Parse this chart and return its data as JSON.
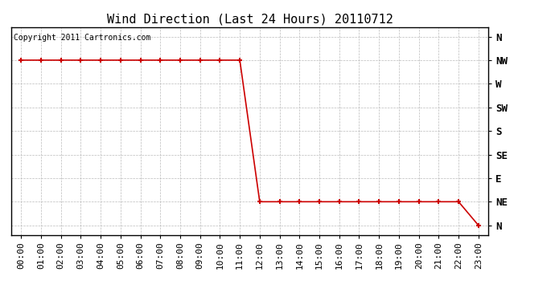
{
  "title": "Wind Direction (Last 24 Hours) 20110712",
  "copyright_text": "Copyright 2011 Cartronics.com",
  "background_color": "#ffffff",
  "plot_bg_color": "#ffffff",
  "grid_color": "#bbbbbb",
  "line_color": "#cc0000",
  "marker_color": "#cc0000",
  "x_labels": [
    "00:00",
    "01:00",
    "02:00",
    "03:00",
    "04:00",
    "05:00",
    "06:00",
    "07:00",
    "08:00",
    "09:00",
    "10:00",
    "11:00",
    "12:00",
    "13:00",
    "14:00",
    "15:00",
    "16:00",
    "17:00",
    "18:00",
    "19:00",
    "20:00",
    "21:00",
    "22:00",
    "23:00"
  ],
  "y_tick_positions": [
    0,
    1,
    2,
    3,
    4,
    5,
    6,
    7,
    8
  ],
  "y_tick_labels": [
    "N",
    "NE",
    "E",
    "SE",
    "S",
    "SW",
    "W",
    "NW",
    "N"
  ],
  "data_x": [
    0,
    1,
    2,
    3,
    4,
    5,
    6,
    7,
    8,
    9,
    10,
    11,
    12,
    13,
    14,
    15,
    16,
    17,
    18,
    19,
    20,
    21,
    22,
    23
  ],
  "data_y": [
    7,
    7,
    7,
    7,
    7,
    7,
    7,
    7,
    7,
    7,
    7,
    7,
    1,
    1,
    1,
    1,
    1,
    1,
    1,
    1,
    1,
    1,
    1,
    0
  ],
  "xlim": [
    -0.5,
    23.5
  ],
  "ylim": [
    -0.4,
    8.4
  ],
  "title_fontsize": 11,
  "copyright_fontsize": 7,
  "tick_fontsize": 8,
  "ytick_fontsize": 9
}
